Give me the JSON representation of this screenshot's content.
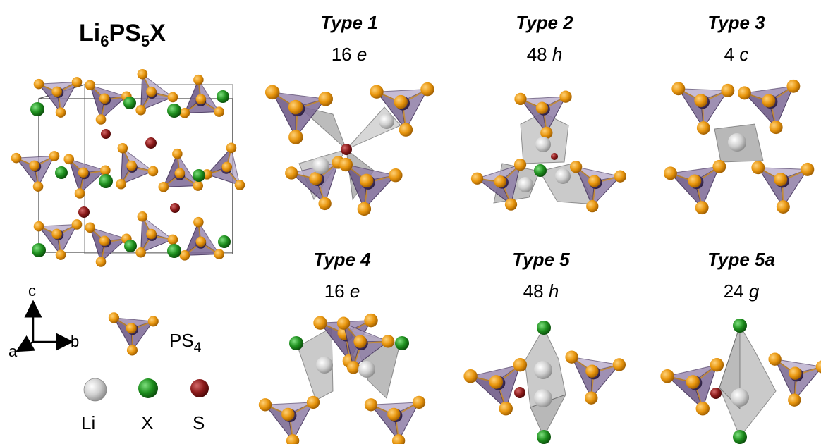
{
  "main_title": {
    "base": "Li",
    "sub1": "6",
    "mid": "PS",
    "sub2": "5",
    "end": "X"
  },
  "types": [
    {
      "title": "Type 1",
      "site_number": "16",
      "site_letter": "e"
    },
    {
      "title": "Type 2",
      "site_number": "48",
      "site_letter": "h"
    },
    {
      "title": "Type 3",
      "site_number": "4",
      "site_letter": "c"
    },
    {
      "title": "Type 4",
      "site_number": "16",
      "site_letter": "e"
    },
    {
      "title": "Type 5",
      "site_number": "48",
      "site_letter": "h"
    },
    {
      "title": "Type 5a",
      "site_number": "24",
      "site_letter": "g"
    }
  ],
  "axes": {
    "c": "c",
    "a": "a",
    "b": "b"
  },
  "legend": {
    "ps4": {
      "base": "PS",
      "sub": "4"
    },
    "li": "Li",
    "x": "X",
    "s": "S"
  },
  "colors": {
    "tetra_purple": "#8e7aa6",
    "tetra_dark": "#5a4573",
    "p_atom": "#4d3a6b",
    "s_ps4": "#e59a10",
    "li_grey": "#c8c8c8",
    "x_green": "#1e8f1e",
    "s_red": "#8b1a1a",
    "li_poly": "#a6a6a6"
  }
}
